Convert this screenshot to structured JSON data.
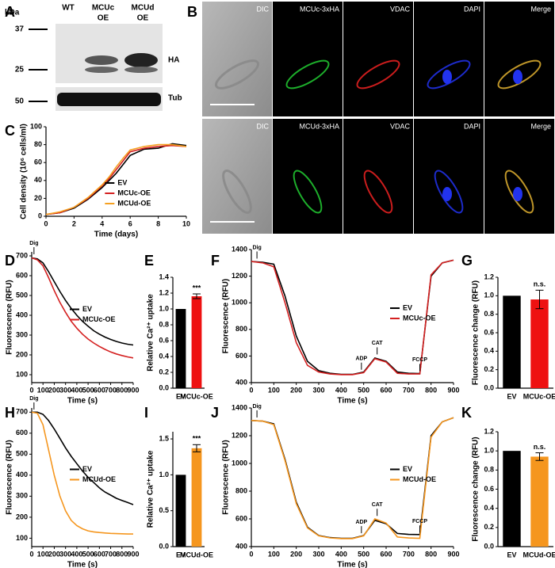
{
  "panel_labels": [
    "A",
    "B",
    "C",
    "D",
    "E",
    "F",
    "G",
    "H",
    "I",
    "J",
    "K"
  ],
  "blot": {
    "unit": "kDa",
    "lanes": [
      [
        "WT"
      ],
      [
        "MCUc",
        "OE"
      ],
      [
        "MCUd",
        "OE"
      ]
    ],
    "markers": [
      37,
      25,
      50
    ],
    "bands": [
      "HA",
      "Tub"
    ]
  },
  "microscopy": {
    "rows": [
      {
        "channels": [
          "DIC",
          "MCUc-3xHA",
          "VDAC",
          "DAPI",
          "Merge"
        ]
      },
      {
        "channels": [
          "DIC",
          "MCUd-3xHA",
          "VDAC",
          "DAPI",
          "Merge"
        ]
      }
    ]
  },
  "chart_data": [
    {
      "type": "line",
      "xlabel": "Time (days)",
      "ylabel": "Cell density (10⁶ cells/ml)",
      "x": [
        0,
        1,
        2,
        3,
        4,
        4.5,
        5,
        5.5,
        6,
        7,
        8,
        9,
        10
      ],
      "xlim": [
        0,
        10
      ],
      "xticks": [
        0,
        2,
        4,
        6,
        8,
        10
      ],
      "ylim": [
        0,
        100
      ],
      "yticks": [
        0,
        20,
        40,
        60,
        80,
        100
      ],
      "legend": "lower right",
      "series": [
        {
          "name": "EV",
          "color": "#000000",
          "values": [
            2,
            4,
            9,
            19,
            32,
            40,
            48,
            58,
            68,
            75,
            76,
            81,
            79
          ]
        },
        {
          "name": "MCUc-OE",
          "color": "#d42020",
          "values": [
            2,
            4,
            10,
            20,
            34,
            42,
            52,
            62,
            72,
            76,
            78,
            79,
            78
          ]
        },
        {
          "name": "MCUd-OE",
          "color": "#f5a020",
          "values": [
            2,
            5,
            10,
            21,
            35,
            44,
            55,
            65,
            74,
            78,
            80,
            80,
            78
          ]
        }
      ]
    },
    {
      "type": "line",
      "xlabel": "Time (s)",
      "ylabel": "Fluorescence (RFU)",
      "x": [
        0,
        50,
        100,
        150,
        200,
        250,
        300,
        350,
        400,
        450,
        500,
        550,
        600,
        650,
        700,
        750,
        800,
        850,
        900
      ],
      "xlim": [
        0,
        900
      ],
      "xticks": [
        0,
        100,
        200,
        300,
        400,
        500,
        600,
        700,
        800,
        900
      ],
      "ylim": [
        60,
        720
      ],
      "yticks": [
        100,
        200,
        300,
        400,
        500,
        600,
        700
      ],
      "legend": "right",
      "annotations": [
        {
          "text": "Dig",
          "x": 20,
          "y": 700
        }
      ],
      "series": [
        {
          "name": "EV",
          "color": "#000000",
          "values": [
            690,
            685,
            665,
            620,
            570,
            520,
            475,
            435,
            400,
            370,
            345,
            322,
            305,
            290,
            278,
            268,
            260,
            254,
            250
          ]
        },
        {
          "name": "MCUc-OE",
          "color": "#d42020",
          "values": [
            690,
            680,
            650,
            590,
            525,
            465,
            415,
            370,
            335,
            305,
            280,
            260,
            243,
            228,
            215,
            205,
            197,
            190,
            185
          ]
        }
      ]
    },
    {
      "type": "bar",
      "ylabel": "Relative Ca²⁺ uptake",
      "categories": [
        "EV",
        "MCUc-OE"
      ],
      "values": [
        1.0,
        1.16
      ],
      "errors": [
        null,
        0.03
      ],
      "colors": [
        "#000000",
        "#ee1111"
      ],
      "ylim": [
        0,
        1.4
      ],
      "yticks": [
        {
          "value": 0,
          "label": "0.0"
        },
        {
          "value": 0.2,
          "label": "0.2"
        },
        {
          "value": 0.4,
          "label": "0.4"
        },
        {
          "value": 0.6,
          "label": "0.6"
        },
        {
          "value": 0.8,
          "label": "0.8"
        },
        {
          "value": 1,
          "label": "1.0"
        },
        {
          "value": 1.2,
          "label": "1.2"
        },
        {
          "value": 1.4,
          "label": "1.4"
        }
      ],
      "annotations": [
        {
          "text": "***",
          "category": "MCUc-OE"
        }
      ]
    },
    {
      "type": "line",
      "xlabel": "Time (s)",
      "ylabel": "Fluorescence (RFU)",
      "x": [
        0,
        50,
        100,
        150,
        200,
        250,
        300,
        350,
        400,
        450,
        500,
        550,
        600,
        650,
        700,
        750,
        800,
        850,
        900
      ],
      "xlim": [
        0,
        900
      ],
      "xticks": [
        0,
        100,
        200,
        300,
        400,
        500,
        600,
        700,
        800,
        900
      ],
      "ylim": [
        400,
        1400
      ],
      "yticks": [
        400,
        600,
        800,
        1000,
        1200,
        1400
      ],
      "legend": "right",
      "annotations": [
        {
          "text": "Dig",
          "x": 25,
          "y": 1320
        },
        {
          "text": "ADP",
          "x": 490,
          "y": 485
        },
        {
          "text": "CAT",
          "x": 560,
          "y": 600
        },
        {
          "text": "FCCP",
          "x": 750,
          "y": 475
        }
      ],
      "series": [
        {
          "name": "EV",
          "color": "#000000",
          "values": [
            1310,
            1305,
            1290,
            1050,
            750,
            560,
            490,
            470,
            462,
            462,
            480,
            585,
            560,
            480,
            470,
            468,
            1200,
            1300,
            1320
          ]
        },
        {
          "name": "MCUc-OE",
          "color": "#d42020",
          "values": [
            1310,
            1300,
            1270,
            1000,
            700,
            530,
            480,
            465,
            460,
            460,
            475,
            580,
            555,
            470,
            465,
            465,
            1210,
            1300,
            1320
          ]
        }
      ]
    },
    {
      "type": "bar",
      "ylabel": "Fluorescence change (RFU)",
      "categories": [
        "EV",
        "MCUc-OE"
      ],
      "values": [
        1.0,
        0.96
      ],
      "errors": [
        null,
        0.1
      ],
      "colors": [
        "#000000",
        "#ee1111"
      ],
      "ylim": [
        0,
        1.2
      ],
      "yticks": [
        {
          "value": 0,
          "label": "0.0"
        },
        {
          "value": 0.2,
          "label": "0.2"
        },
        {
          "value": 0.4,
          "label": "0.4"
        },
        {
          "value": 0.6,
          "label": "0.6"
        },
        {
          "value": 0.8,
          "label": "0.8"
        },
        {
          "value": 1,
          "label": "1.0"
        },
        {
          "value": 1.2,
          "label": "1.2"
        }
      ],
      "annotations": [
        {
          "text": "n.s.",
          "category": "MCUc-OE"
        }
      ]
    },
    {
      "type": "line",
      "xlabel": "Time (s)",
      "ylabel": "Fluorescence (RFU)",
      "x": [
        0,
        50,
        100,
        150,
        200,
        250,
        300,
        350,
        400,
        450,
        500,
        550,
        600,
        650,
        700,
        750,
        800,
        850,
        900
      ],
      "xlim": [
        0,
        900
      ],
      "xticks": [
        0,
        100,
        200,
        300,
        400,
        500,
        600,
        700,
        800,
        900
      ],
      "ylim": [
        60,
        720
      ],
      "yticks": [
        100,
        200,
        300,
        400,
        500,
        600,
        700
      ],
      "legend": "right",
      "annotations": [
        {
          "text": "Dig",
          "x": 20,
          "y": 705
        }
      ],
      "series": [
        {
          "name": "EV",
          "color": "#000000",
          "values": [
            700,
            700,
            690,
            660,
            620,
            575,
            530,
            490,
            455,
            420,
            390,
            365,
            340,
            320,
            305,
            290,
            280,
            270,
            260
          ]
        },
        {
          "name": "MCUd-OE",
          "color": "#f5961e",
          "values": [
            700,
            695,
            640,
            520,
            400,
            300,
            230,
            185,
            160,
            145,
            135,
            130,
            127,
            125,
            123,
            122,
            121,
            120,
            120
          ]
        }
      ]
    },
    {
      "type": "bar",
      "ylabel": "Relative Ca²⁺ uptake",
      "categories": [
        "EV",
        "MCUd-OE"
      ],
      "values": [
        1.0,
        1.37
      ],
      "errors": [
        null,
        0.05
      ],
      "colors": [
        "#000000",
        "#f5961e"
      ],
      "ylim": [
        0,
        1.6
      ],
      "yticks": [
        {
          "value": 0,
          "label": "0.0"
        },
        {
          "value": 0.5,
          "label": "0.5"
        },
        {
          "value": 1,
          "label": "1.0"
        },
        {
          "value": 1.5,
          "label": "1.5"
        }
      ],
      "annotations": [
        {
          "text": "***",
          "category": "MCUd-OE"
        }
      ]
    },
    {
      "type": "line",
      "xlabel": "Time (s)",
      "ylabel": "Fluorescence (RFU)",
      "x": [
        0,
        50,
        100,
        150,
        200,
        250,
        300,
        350,
        400,
        450,
        500,
        550,
        600,
        650,
        700,
        750,
        800,
        850,
        900
      ],
      "xlim": [
        0,
        900
      ],
      "xticks": [
        0,
        100,
        200,
        300,
        400,
        500,
        600,
        700,
        800,
        900
      ],
      "ylim": [
        400,
        1400
      ],
      "yticks": [
        400,
        600,
        800,
        1000,
        1200,
        1400
      ],
      "legend": "right",
      "annotations": [
        {
          "text": "Dig",
          "x": 25,
          "y": 1320
        },
        {
          "text": "ADP",
          "x": 490,
          "y": 485
        },
        {
          "text": "CAT",
          "x": 560,
          "y": 610
        },
        {
          "text": "FCCP",
          "x": 750,
          "y": 490
        }
      ],
      "series": [
        {
          "name": "EV",
          "color": "#000000",
          "values": [
            1310,
            1305,
            1285,
            1030,
            720,
            540,
            480,
            465,
            460,
            460,
            480,
            590,
            565,
            495,
            488,
            487,
            1200,
            1300,
            1330
          ]
        },
        {
          "name": "MCUd-OE",
          "color": "#f5961e",
          "values": [
            1310,
            1305,
            1280,
            1020,
            710,
            535,
            478,
            463,
            458,
            458,
            478,
            600,
            570,
            470,
            462,
            460,
            1190,
            1300,
            1330
          ]
        }
      ]
    },
    {
      "type": "bar",
      "ylabel": "Fluorescence change (RFU)",
      "categories": [
        "EV",
        "MCUd-OE"
      ],
      "values": [
        1.0,
        0.94
      ],
      "errors": [
        null,
        0.04
      ],
      "colors": [
        "#000000",
        "#f5961e"
      ],
      "ylim": [
        0,
        1.2
      ],
      "yticks": [
        {
          "value": 0,
          "label": "0.0"
        },
        {
          "value": 0.2,
          "label": "0.2"
        },
        {
          "value": 0.4,
          "label": "0.4"
        },
        {
          "value": 0.6,
          "label": "0.6"
        },
        {
          "value": 0.8,
          "label": "0.8"
        },
        {
          "value": 1,
          "label": "1.0"
        },
        {
          "value": 1.2,
          "label": "1.2"
        }
      ],
      "annotations": [
        {
          "text": "n.s.",
          "category": "MCUd-OE"
        }
      ]
    }
  ]
}
